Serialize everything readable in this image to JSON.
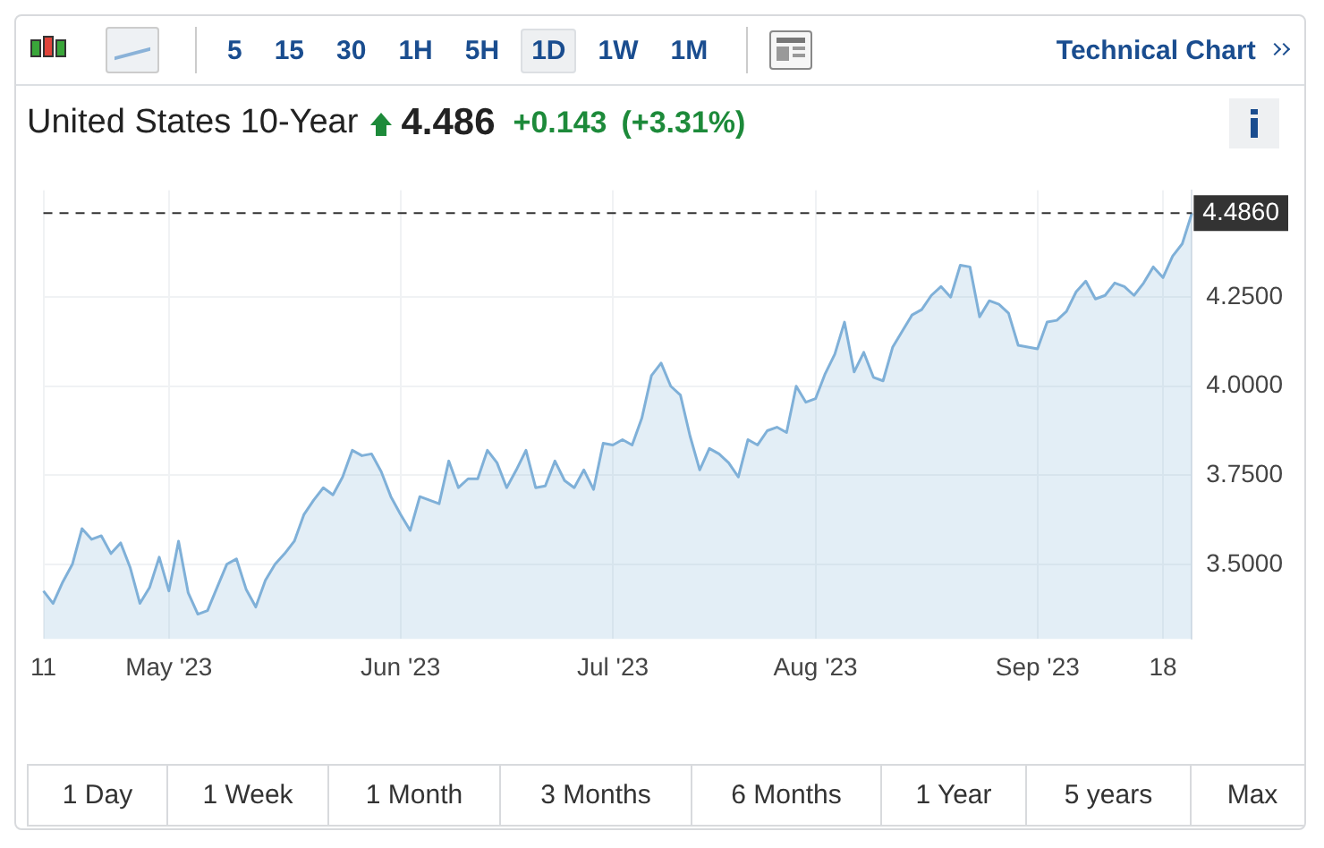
{
  "chart_data": {
    "type": "area",
    "title": "United States 10-Year",
    "categories": [
      "11",
      null,
      null,
      null,
      null,
      null,
      null,
      null,
      null,
      null,
      null,
      null,
      null,
      "May '23",
      null,
      null,
      null,
      null,
      null,
      null,
      null,
      null,
      null,
      null,
      null,
      null,
      null,
      null,
      null,
      null,
      null,
      null,
      null,
      null,
      null,
      null,
      null,
      "Jun '23",
      null,
      null,
      null,
      null,
      null,
      null,
      null,
      null,
      null,
      null,
      null,
      null,
      null,
      null,
      null,
      null,
      null,
      null,
      null,
      null,
      null,
      "Jul '23",
      null,
      null,
      null,
      null,
      null,
      null,
      null,
      null,
      null,
      null,
      null,
      null,
      null,
      null,
      null,
      null,
      null,
      null,
      null,
      null,
      "Aug '23",
      null,
      null,
      null,
      null,
      null,
      null,
      null,
      null,
      null,
      null,
      null,
      null,
      null,
      null,
      null,
      null,
      null,
      null,
      null,
      null,
      null,
      null,
      "Sep '23",
      null,
      null,
      null,
      null,
      null,
      null,
      null,
      null,
      null,
      null,
      null,
      null,
      "18",
      null,
      null,
      null
    ],
    "series": [
      {
        "color": "#7fb0d8",
        "values": [
          3.425,
          3.39,
          3.45,
          3.5,
          3.6,
          3.57,
          3.58,
          3.53,
          3.56,
          3.49,
          3.39,
          3.435,
          3.52,
          3.425,
          3.565,
          3.42,
          3.36,
          3.37,
          3.435,
          3.5,
          3.515,
          3.43,
          3.38,
          3.455,
          3.5,
          3.53,
          3.565,
          3.64,
          3.68,
          3.715,
          3.695,
          3.745,
          3.82,
          3.805,
          3.81,
          3.76,
          3.69,
          3.64,
          3.595,
          3.69,
          3.68,
          3.67,
          3.79,
          3.715,
          3.74,
          3.74,
          3.82,
          3.785,
          3.715,
          3.765,
          3.82,
          3.715,
          3.72,
          3.79,
          3.735,
          3.715,
          3.765,
          3.71,
          3.84,
          3.835,
          3.85,
          3.835,
          3.91,
          4.03,
          4.065,
          4.0,
          3.975,
          3.86,
          3.765,
          3.825,
          3.81,
          3.785,
          3.745,
          3.85,
          3.835,
          3.875,
          3.885,
          3.87,
          4.0,
          3.955,
          3.965,
          4.035,
          4.09,
          4.18,
          4.04,
          4.095,
          4.025,
          4.015,
          4.11,
          4.155,
          4.2,
          4.215,
          4.255,
          4.28,
          4.25,
          4.34,
          4.335,
          4.195,
          4.24,
          4.23,
          4.205,
          4.115,
          4.11,
          4.105,
          4.18,
          4.185,
          4.21,
          4.265,
          4.295,
          4.245,
          4.255,
          4.29,
          4.28,
          4.255,
          4.29,
          4.335,
          4.305,
          4.365,
          4.4,
          4.486
        ]
      }
    ],
    "ylim": [
      3.29,
      4.55
    ],
    "yticks": [
      {
        "value": 3.5,
        "label": "3.5000"
      },
      {
        "value": 3.75,
        "label": "3.7500"
      },
      {
        "value": 4.0,
        "label": "4.0000"
      },
      {
        "value": 4.25,
        "label": "4.2500"
      }
    ],
    "ref_lines": [
      {
        "axis": "y",
        "value": 4.486,
        "label": "4.4860",
        "color": "#333333",
        "line_style": "dashed"
      }
    ],
    "grid": true,
    "legend": false,
    "annotations": [
      "4.486",
      "+0.143",
      "(+3.31%)",
      "Technical Chart",
      "5",
      "15",
      "30",
      "1H",
      "5H",
      "1D",
      "1W",
      "1M",
      "1 Day",
      "1 Week",
      "1 Month",
      "3 Months",
      "6 Months",
      "1 Year",
      "5 years",
      "Max"
    ]
  }
}
